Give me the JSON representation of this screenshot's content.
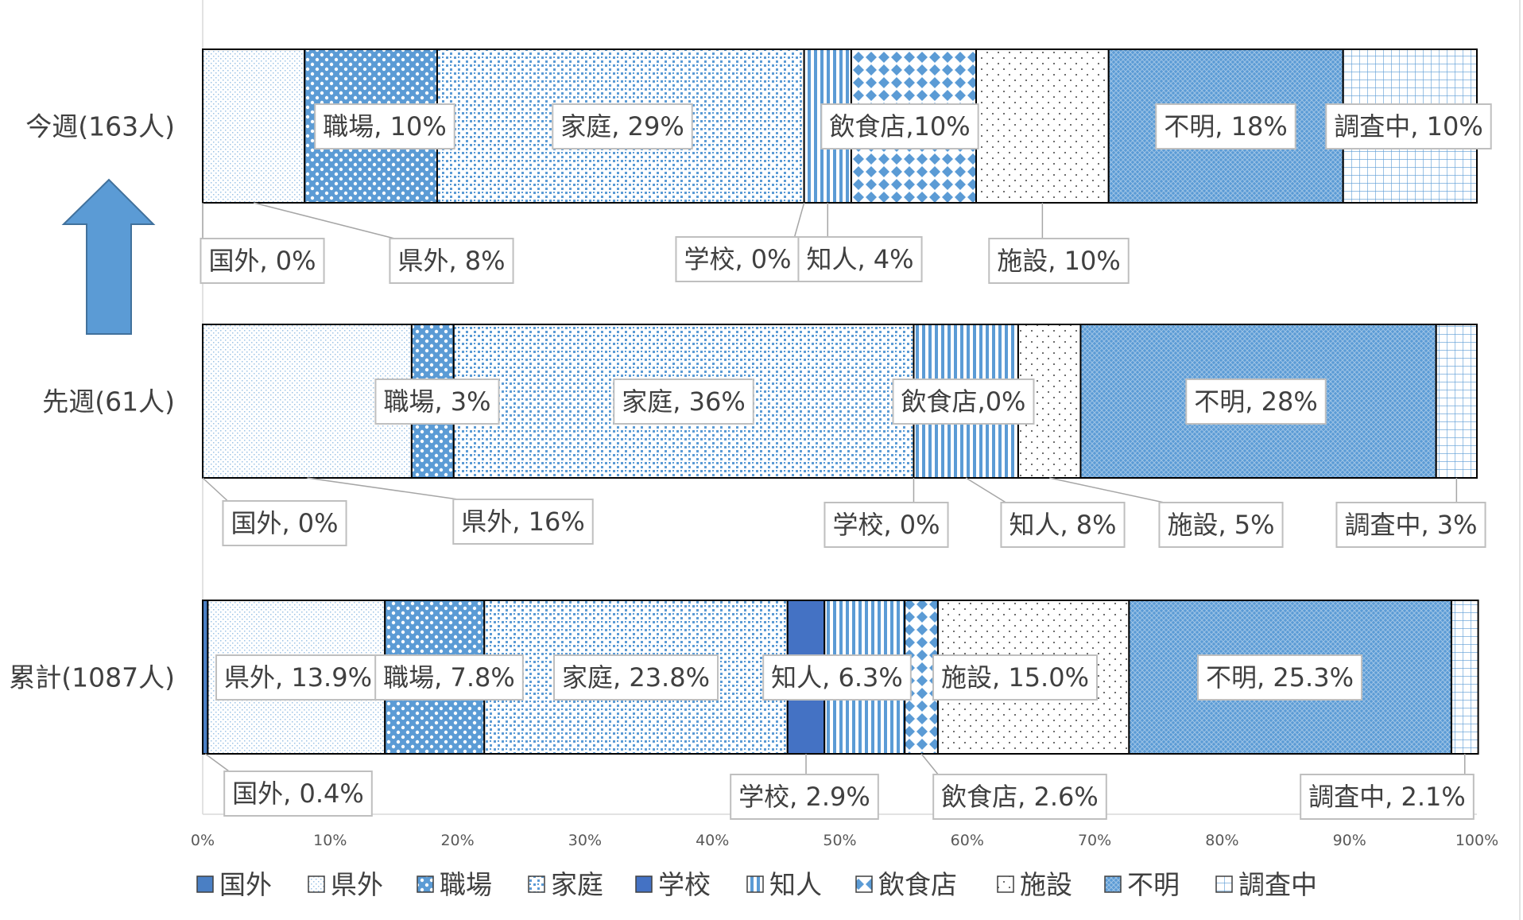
{
  "chart_data": {
    "type": "bar",
    "orientation": "horizontal",
    "stacked": "percent",
    "title": "",
    "xlabel": "",
    "ylabel": "",
    "xlim": [
      0,
      100
    ],
    "x_ticks": [
      "0%",
      "10%",
      "20%",
      "30%",
      "40%",
      "50%",
      "60%",
      "70%",
      "80%",
      "90%",
      "100%"
    ],
    "legend_position": "bottom",
    "grid": false,
    "categories": [
      "今週(163人)",
      "先週(61人)",
      "累計(1087人)"
    ],
    "series": [
      {
        "name": "国外",
        "values": [
          0,
          0,
          0.4
        ],
        "labels": [
          "国外, 0%",
          "国外, 0%",
          "国外, 0.4%"
        ],
        "color": "#4a7fc4",
        "pattern": "solid"
      },
      {
        "name": "県外",
        "values": [
          8,
          16.4,
          13.9
        ],
        "labels": [
          "県外, 8%",
          "県外, 16%",
          "県外, 13.9%"
        ],
        "color": "#9dc3e6",
        "pattern": "fine-dots"
      },
      {
        "name": "職場",
        "values": [
          10.4,
          3.3,
          7.8
        ],
        "labels": [
          "職場, 10%",
          "職場, 3%",
          "職場, 7.8%"
        ],
        "color": "#5b9bd5",
        "pattern": "circles"
      },
      {
        "name": "家庭",
        "values": [
          28.8,
          36.1,
          23.8
        ],
        "labels": [
          "家庭, 29%",
          "家庭, 36%",
          "家庭, 23.8%"
        ],
        "color": "#5b9bd5",
        "pattern": "confetti"
      },
      {
        "name": "学校",
        "values": [
          0,
          0,
          2.9
        ],
        "labels": [
          "学校, 0%",
          "学校, 0%",
          "学校, 2.9%"
        ],
        "color": "#4472c4",
        "pattern": "solid"
      },
      {
        "name": "知人",
        "values": [
          3.7,
          8.2,
          6.3
        ],
        "labels": [
          "知人, 4%",
          "知人, 8%",
          "知人, 6.3%"
        ],
        "color": "#5b9bd5",
        "pattern": "vertical"
      },
      {
        "name": "飲食店",
        "values": [
          9.8,
          0,
          2.6
        ],
        "labels": [
          "飲食店,10%",
          "飲食店,0%",
          "飲食店, 2.6%"
        ],
        "color": "#5b9bd5",
        "pattern": "diamonds"
      },
      {
        "name": "施設",
        "values": [
          10.4,
          4.9,
          15.0
        ],
        "labels": [
          "施設, 10%",
          "施設, 5%",
          "施設, 15.0%"
        ],
        "color": "#404040",
        "pattern": "sparse-dots"
      },
      {
        "name": "不明",
        "values": [
          18.4,
          27.9,
          25.3
        ],
        "labels": [
          "不明, 18%",
          "不明, 28%",
          "不明, 25.3%"
        ],
        "color": "#5b9bd5",
        "pattern": "weave"
      },
      {
        "name": "調査中",
        "values": [
          10.5,
          3.2,
          2.1
        ],
        "labels": [
          "調査中, 10%",
          "調査中, 3%",
          "調査中, 2.1%"
        ],
        "color": "#9dc3e6",
        "pattern": "grid"
      }
    ],
    "annotation": {
      "shape": "up-arrow",
      "color": "#5b9bd5"
    }
  }
}
